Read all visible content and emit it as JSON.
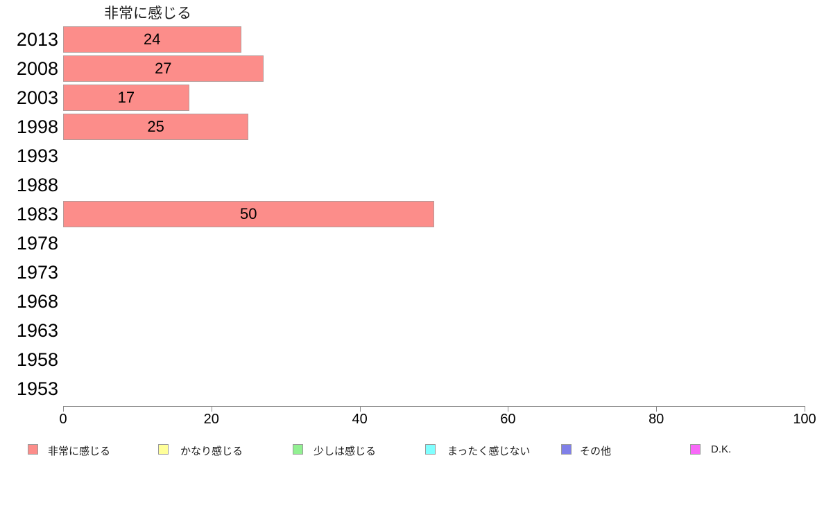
{
  "chart_data": {
    "type": "bar",
    "orientation": "horizontal",
    "title": "非常に感じる",
    "categories": [
      "2013",
      "2008",
      "2003",
      "1998",
      "1993",
      "1988",
      "1983",
      "1978",
      "1973",
      "1968",
      "1963",
      "1958",
      "1953"
    ],
    "values": [
      24,
      27,
      17,
      25,
      null,
      null,
      50,
      null,
      null,
      null,
      null,
      null,
      null
    ],
    "xlim": [
      0,
      100
    ],
    "x_ticks": [
      0,
      20,
      40,
      60,
      80,
      100
    ],
    "grid": false,
    "bar_color": "#fc8d8a",
    "legend_position": "bottom",
    "legend": [
      {
        "label": "非常に感じる",
        "color": "#fc8d8a"
      },
      {
        "label": "かなり感じる",
        "color": "#ffff99"
      },
      {
        "label": "少しは感じる",
        "color": "#92f092"
      },
      {
        "label": "まったく感じない",
        "color": "#80ffff"
      },
      {
        "label": "その他",
        "color": "#8080e8"
      },
      {
        "label": "D.K.",
        "color": "#f868f8"
      }
    ]
  }
}
